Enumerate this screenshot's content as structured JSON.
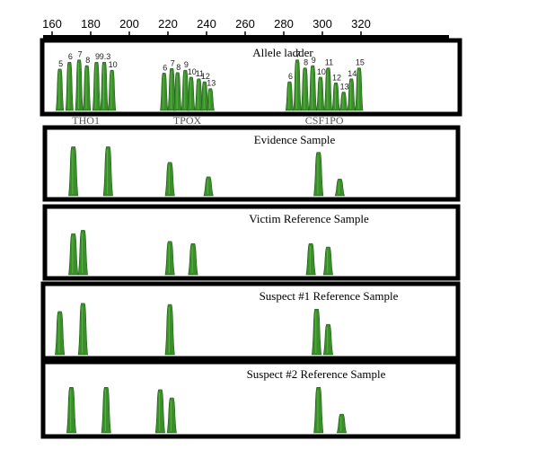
{
  "scale": {
    "ticks": [
      160,
      180,
      200,
      220,
      240,
      260,
      280,
      300,
      320
    ]
  },
  "colors": {
    "peak": "#3a8f2a",
    "peak_dark": "#1f5f18",
    "frame": "#000000"
  },
  "panels": [
    {
      "title": "Allele ladder",
      "kind": "ladder",
      "loci": [
        {
          "name": "THO1",
          "alleles": [
            {
              "label": "5",
              "size": 164,
              "height": 0.72
            },
            {
              "label": "6",
              "size": 169,
              "height": 0.84
            },
            {
              "label": "7",
              "size": 174,
              "height": 0.88
            },
            {
              "label": "8",
              "size": 178,
              "height": 0.78
            },
            {
              "label": "9",
              "size": 183,
              "height": 0.84
            },
            {
              "label": "9.3",
              "size": 187,
              "height": 0.84
            },
            {
              "label": "10",
              "size": 191,
              "height": 0.7
            }
          ]
        },
        {
          "name": "TPOX",
          "alleles": [
            {
              "label": "6",
              "size": 218,
              "height": 0.65
            },
            {
              "label": "7",
              "size": 222,
              "height": 0.73
            },
            {
              "label": "8",
              "size": 225,
              "height": 0.66
            },
            {
              "label": "9",
              "size": 229,
              "height": 0.7
            },
            {
              "label": "10",
              "size": 232,
              "height": 0.58
            },
            {
              "label": "11",
              "size": 236,
              "height": 0.55
            },
            {
              "label": "12",
              "size": 239,
              "height": 0.5
            },
            {
              "label": "13",
              "size": 242,
              "height": 0.38
            }
          ]
        },
        {
          "name": "CSF1PO",
          "alleles": [
            {
              "label": "6",
              "size": 283,
              "height": 0.5
            },
            {
              "label": "7",
              "size": 287,
              "height": 0.88
            },
            {
              "label": "8",
              "size": 291,
              "height": 0.74
            },
            {
              "label": "9",
              "size": 295,
              "height": 0.78
            },
            {
              "label": "10",
              "size": 299,
              "height": 0.58
            },
            {
              "label": "11",
              "size": 303,
              "height": 0.74
            },
            {
              "label": "12",
              "size": 307,
              "height": 0.48
            },
            {
              "label": "13",
              "size": 311,
              "height": 0.32
            },
            {
              "label": "14",
              "size": 315,
              "height": 0.55
            },
            {
              "label": "15",
              "size": 319,
              "height": 0.74
            }
          ]
        }
      ]
    },
    {
      "title": "Evidence Sample",
      "kind": "sample",
      "peaks": [
        {
          "size": 171,
          "height": 0.88
        },
        {
          "size": 189,
          "height": 0.88
        },
        {
          "size": 221,
          "height": 0.6
        },
        {
          "size": 241,
          "height": 0.34
        },
        {
          "size": 298,
          "height": 0.78
        },
        {
          "size": 309,
          "height": 0.3
        }
      ]
    },
    {
      "title": "Victim Reference Sample",
      "kind": "sample",
      "peaks": [
        {
          "size": 171,
          "height": 0.74
        },
        {
          "size": 176,
          "height": 0.8
        },
        {
          "size": 221,
          "height": 0.6
        },
        {
          "size": 233,
          "height": 0.56
        },
        {
          "size": 294,
          "height": 0.56
        },
        {
          "size": 303,
          "height": 0.5
        }
      ]
    },
    {
      "title": "Suspect #1 Reference Sample",
      "kind": "sample",
      "peaks": [
        {
          "size": 164,
          "height": 0.74
        },
        {
          "size": 176,
          "height": 0.88
        },
        {
          "size": 221,
          "height": 0.86
        },
        {
          "size": 297,
          "height": 0.78
        },
        {
          "size": 303,
          "height": 0.52
        }
      ]
    },
    {
      "title": "Suspect #2 Reference Sample",
      "kind": "sample",
      "peaks": [
        {
          "size": 170,
          "height": 0.78
        },
        {
          "size": 188,
          "height": 0.78
        },
        {
          "size": 216,
          "height": 0.74
        },
        {
          "size": 222,
          "height": 0.6
        },
        {
          "size": 298,
          "height": 0.78
        },
        {
          "size": 310,
          "height": 0.32
        }
      ]
    }
  ]
}
